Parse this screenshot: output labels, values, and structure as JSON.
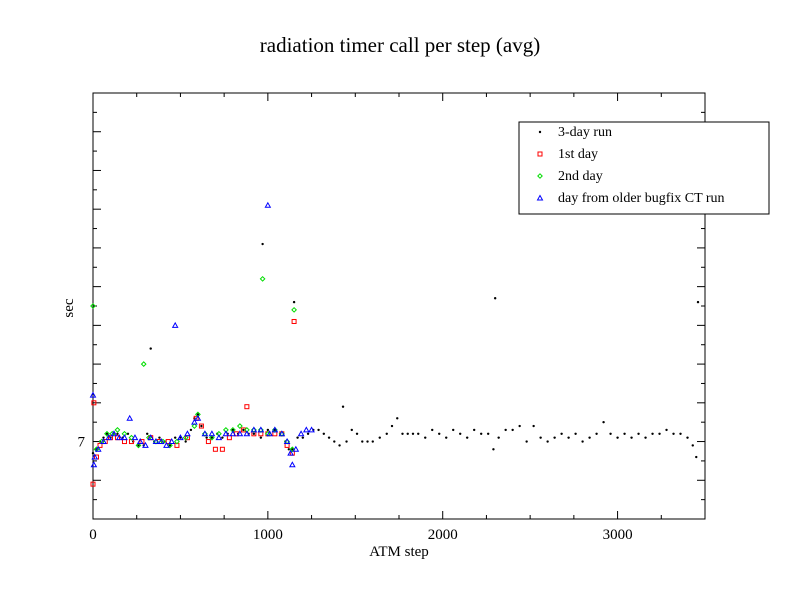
{
  "chart_data": {
    "type": "scatter",
    "title": "radiation timer call per step (avg)",
    "xlabel": "ATM step",
    "ylabel": "sec",
    "xlim": [
      0,
      3500
    ],
    "ylim": [
      6.8,
      7.9
    ],
    "x_ticks": [
      0,
      1000,
      2000,
      3000
    ],
    "x_tick_labels": [
      "0",
      "1000",
      "2000",
      "3000"
    ],
    "y_ticks": [
      7.0
    ],
    "y_tick_labels": [
      "7"
    ],
    "grid": false,
    "legend_position": "top-right",
    "series": [
      {
        "name": "3-day run",
        "color": "#000000",
        "marker": "dot",
        "points": [
          [
            0,
            6.97
          ],
          [
            20,
            6.98
          ],
          [
            40,
            7.0
          ],
          [
            60,
            7.01
          ],
          [
            80,
            7.02
          ],
          [
            100,
            7.01
          ],
          [
            120,
            7.02
          ],
          [
            140,
            7.02
          ],
          [
            170,
            7.01
          ],
          [
            200,
            7.02
          ],
          [
            230,
            7.0
          ],
          [
            260,
            6.99
          ],
          [
            290,
            6.99
          ],
          [
            310,
            7.02
          ],
          [
            330,
            7.24
          ],
          [
            350,
            7.0
          ],
          [
            380,
            7.01
          ],
          [
            410,
            7.0
          ],
          [
            440,
            6.99
          ],
          [
            470,
            7.01
          ],
          [
            500,
            7.01
          ],
          [
            530,
            7.0
          ],
          [
            560,
            7.03
          ],
          [
            580,
            7.06
          ],
          [
            600,
            7.07
          ],
          [
            620,
            7.04
          ],
          [
            650,
            7.01
          ],
          [
            680,
            7.01
          ],
          [
            710,
            7.02
          ],
          [
            740,
            7.01
          ],
          [
            770,
            7.02
          ],
          [
            800,
            7.03
          ],
          [
            830,
            7.02
          ],
          [
            860,
            7.03
          ],
          [
            890,
            7.02
          ],
          [
            920,
            7.02
          ],
          [
            960,
            7.01
          ],
          [
            970,
            7.51
          ],
          [
            1000,
            7.03
          ],
          [
            1040,
            7.03
          ],
          [
            1070,
            7.02
          ],
          [
            1100,
            7.0
          ],
          [
            1120,
            6.98
          ],
          [
            1140,
            6.98
          ],
          [
            1150,
            7.36
          ],
          [
            1170,
            7.01
          ],
          [
            1200,
            7.01
          ],
          [
            1230,
            7.02
          ],
          [
            1260,
            7.03
          ],
          [
            1290,
            7.03
          ],
          [
            1320,
            7.02
          ],
          [
            1350,
            7.01
          ],
          [
            1380,
            7.0
          ],
          [
            1410,
            6.99
          ],
          [
            1430,
            7.09
          ],
          [
            1450,
            7.0
          ],
          [
            1480,
            7.03
          ],
          [
            1510,
            7.02
          ],
          [
            1540,
            7.0
          ],
          [
            1570,
            7.0
          ],
          [
            1600,
            7.0
          ],
          [
            1640,
            7.01
          ],
          [
            1680,
            7.02
          ],
          [
            1710,
            7.04
          ],
          [
            1740,
            7.06
          ],
          [
            1770,
            7.02
          ],
          [
            1800,
            7.02
          ],
          [
            1830,
            7.02
          ],
          [
            1860,
            7.02
          ],
          [
            1900,
            7.01
          ],
          [
            1940,
            7.03
          ],
          [
            1980,
            7.02
          ],
          [
            2020,
            7.01
          ],
          [
            2060,
            7.03
          ],
          [
            2100,
            7.02
          ],
          [
            2140,
            7.01
          ],
          [
            2180,
            7.03
          ],
          [
            2220,
            7.02
          ],
          [
            2260,
            7.02
          ],
          [
            2290,
            6.98
          ],
          [
            2300,
            7.37
          ],
          [
            2320,
            7.01
          ],
          [
            2360,
            7.03
          ],
          [
            2400,
            7.03
          ],
          [
            2440,
            7.04
          ],
          [
            2480,
            7.0
          ],
          [
            2520,
            7.04
          ],
          [
            2560,
            7.01
          ],
          [
            2600,
            7.0
          ],
          [
            2640,
            7.01
          ],
          [
            2680,
            7.02
          ],
          [
            2720,
            7.01
          ],
          [
            2760,
            7.02
          ],
          [
            2800,
            7.0
          ],
          [
            2840,
            7.01
          ],
          [
            2880,
            7.02
          ],
          [
            2920,
            7.05
          ],
          [
            2960,
            7.02
          ],
          [
            3000,
            7.01
          ],
          [
            3040,
            7.02
          ],
          [
            3080,
            7.01
          ],
          [
            3120,
            7.02
          ],
          [
            3160,
            7.01
          ],
          [
            3200,
            7.02
          ],
          [
            3240,
            7.02
          ],
          [
            3280,
            7.03
          ],
          [
            3320,
            7.02
          ],
          [
            3360,
            7.02
          ],
          [
            3400,
            7.01
          ],
          [
            3430,
            6.99
          ],
          [
            3450,
            6.96
          ],
          [
            3460,
            7.36
          ]
        ]
      },
      {
        "name": "1st day",
        "color": "#ff0000",
        "marker": "square",
        "points": [
          [
            0,
            6.89
          ],
          [
            5,
            7.1
          ],
          [
            20,
            6.96
          ],
          [
            40,
            6.99
          ],
          [
            70,
            7.0
          ],
          [
            100,
            7.01
          ],
          [
            140,
            7.01
          ],
          [
            180,
            7.0
          ],
          [
            220,
            7.0
          ],
          [
            280,
            7.0
          ],
          [
            330,
            7.01
          ],
          [
            380,
            7.0
          ],
          [
            430,
            7.0
          ],
          [
            480,
            6.99
          ],
          [
            540,
            7.01
          ],
          [
            590,
            7.06
          ],
          [
            620,
            7.04
          ],
          [
            660,
            7.0
          ],
          [
            700,
            6.98
          ],
          [
            740,
            6.98
          ],
          [
            780,
            7.01
          ],
          [
            820,
            7.02
          ],
          [
            860,
            7.03
          ],
          [
            880,
            7.09
          ],
          [
            920,
            7.02
          ],
          [
            960,
            7.02
          ],
          [
            1000,
            7.02
          ],
          [
            1040,
            7.02
          ],
          [
            1080,
            7.02
          ],
          [
            1110,
            6.99
          ],
          [
            1140,
            6.97
          ],
          [
            1150,
            7.31
          ]
        ]
      },
      {
        "name": "2nd day",
        "color": "#00dd00",
        "marker": "diamond",
        "points": [
          [
            0,
            7.35
          ],
          [
            20,
            6.98
          ],
          [
            50,
            7.0
          ],
          [
            80,
            7.02
          ],
          [
            110,
            7.02
          ],
          [
            140,
            7.03
          ],
          [
            180,
            7.02
          ],
          [
            220,
            7.01
          ],
          [
            260,
            6.99
          ],
          [
            290,
            7.2
          ],
          [
            320,
            7.01
          ],
          [
            360,
            7.0
          ],
          [
            400,
            7.0
          ],
          [
            440,
            6.99
          ],
          [
            480,
            7.0
          ],
          [
            530,
            7.01
          ],
          [
            580,
            7.04
          ],
          [
            600,
            7.07
          ],
          [
            640,
            7.02
          ],
          [
            680,
            7.01
          ],
          [
            720,
            7.02
          ],
          [
            760,
            7.03
          ],
          [
            800,
            7.03
          ],
          [
            840,
            7.04
          ],
          [
            880,
            7.03
          ],
          [
            920,
            7.03
          ],
          [
            960,
            7.03
          ],
          [
            970,
            7.42
          ],
          [
            1000,
            7.02
          ],
          [
            1040,
            7.03
          ],
          [
            1080,
            7.02
          ],
          [
            1110,
            7.0
          ],
          [
            1140,
            6.98
          ],
          [
            1150,
            7.34
          ]
        ]
      },
      {
        "name": "day from older bugfix CT run",
        "color": "#0000ff",
        "marker": "triangle",
        "points": [
          [
            0,
            7.12
          ],
          [
            5,
            6.94
          ],
          [
            10,
            6.96
          ],
          [
            30,
            6.98
          ],
          [
            60,
            7.0
          ],
          [
            90,
            7.01
          ],
          [
            120,
            7.02
          ],
          [
            150,
            7.01
          ],
          [
            180,
            7.01
          ],
          [
            210,
            7.06
          ],
          [
            240,
            7.01
          ],
          [
            270,
            7.0
          ],
          [
            300,
            6.99
          ],
          [
            330,
            7.01
          ],
          [
            360,
            7.0
          ],
          [
            390,
            7.0
          ],
          [
            420,
            6.99
          ],
          [
            450,
            7.0
          ],
          [
            470,
            7.3
          ],
          [
            500,
            7.01
          ],
          [
            540,
            7.02
          ],
          [
            580,
            7.05
          ],
          [
            600,
            7.06
          ],
          [
            640,
            7.02
          ],
          [
            680,
            7.02
          ],
          [
            720,
            7.01
          ],
          [
            760,
            7.02
          ],
          [
            800,
            7.02
          ],
          [
            840,
            7.02
          ],
          [
            880,
            7.02
          ],
          [
            920,
            7.03
          ],
          [
            960,
            7.03
          ],
          [
            1000,
            7.61
          ],
          [
            1010,
            7.02
          ],
          [
            1040,
            7.03
          ],
          [
            1080,
            7.02
          ],
          [
            1110,
            7.0
          ],
          [
            1130,
            6.97
          ],
          [
            1140,
            6.94
          ],
          [
            1160,
            6.98
          ],
          [
            1190,
            7.02
          ],
          [
            1220,
            7.03
          ],
          [
            1250,
            7.03
          ]
        ]
      }
    ]
  }
}
